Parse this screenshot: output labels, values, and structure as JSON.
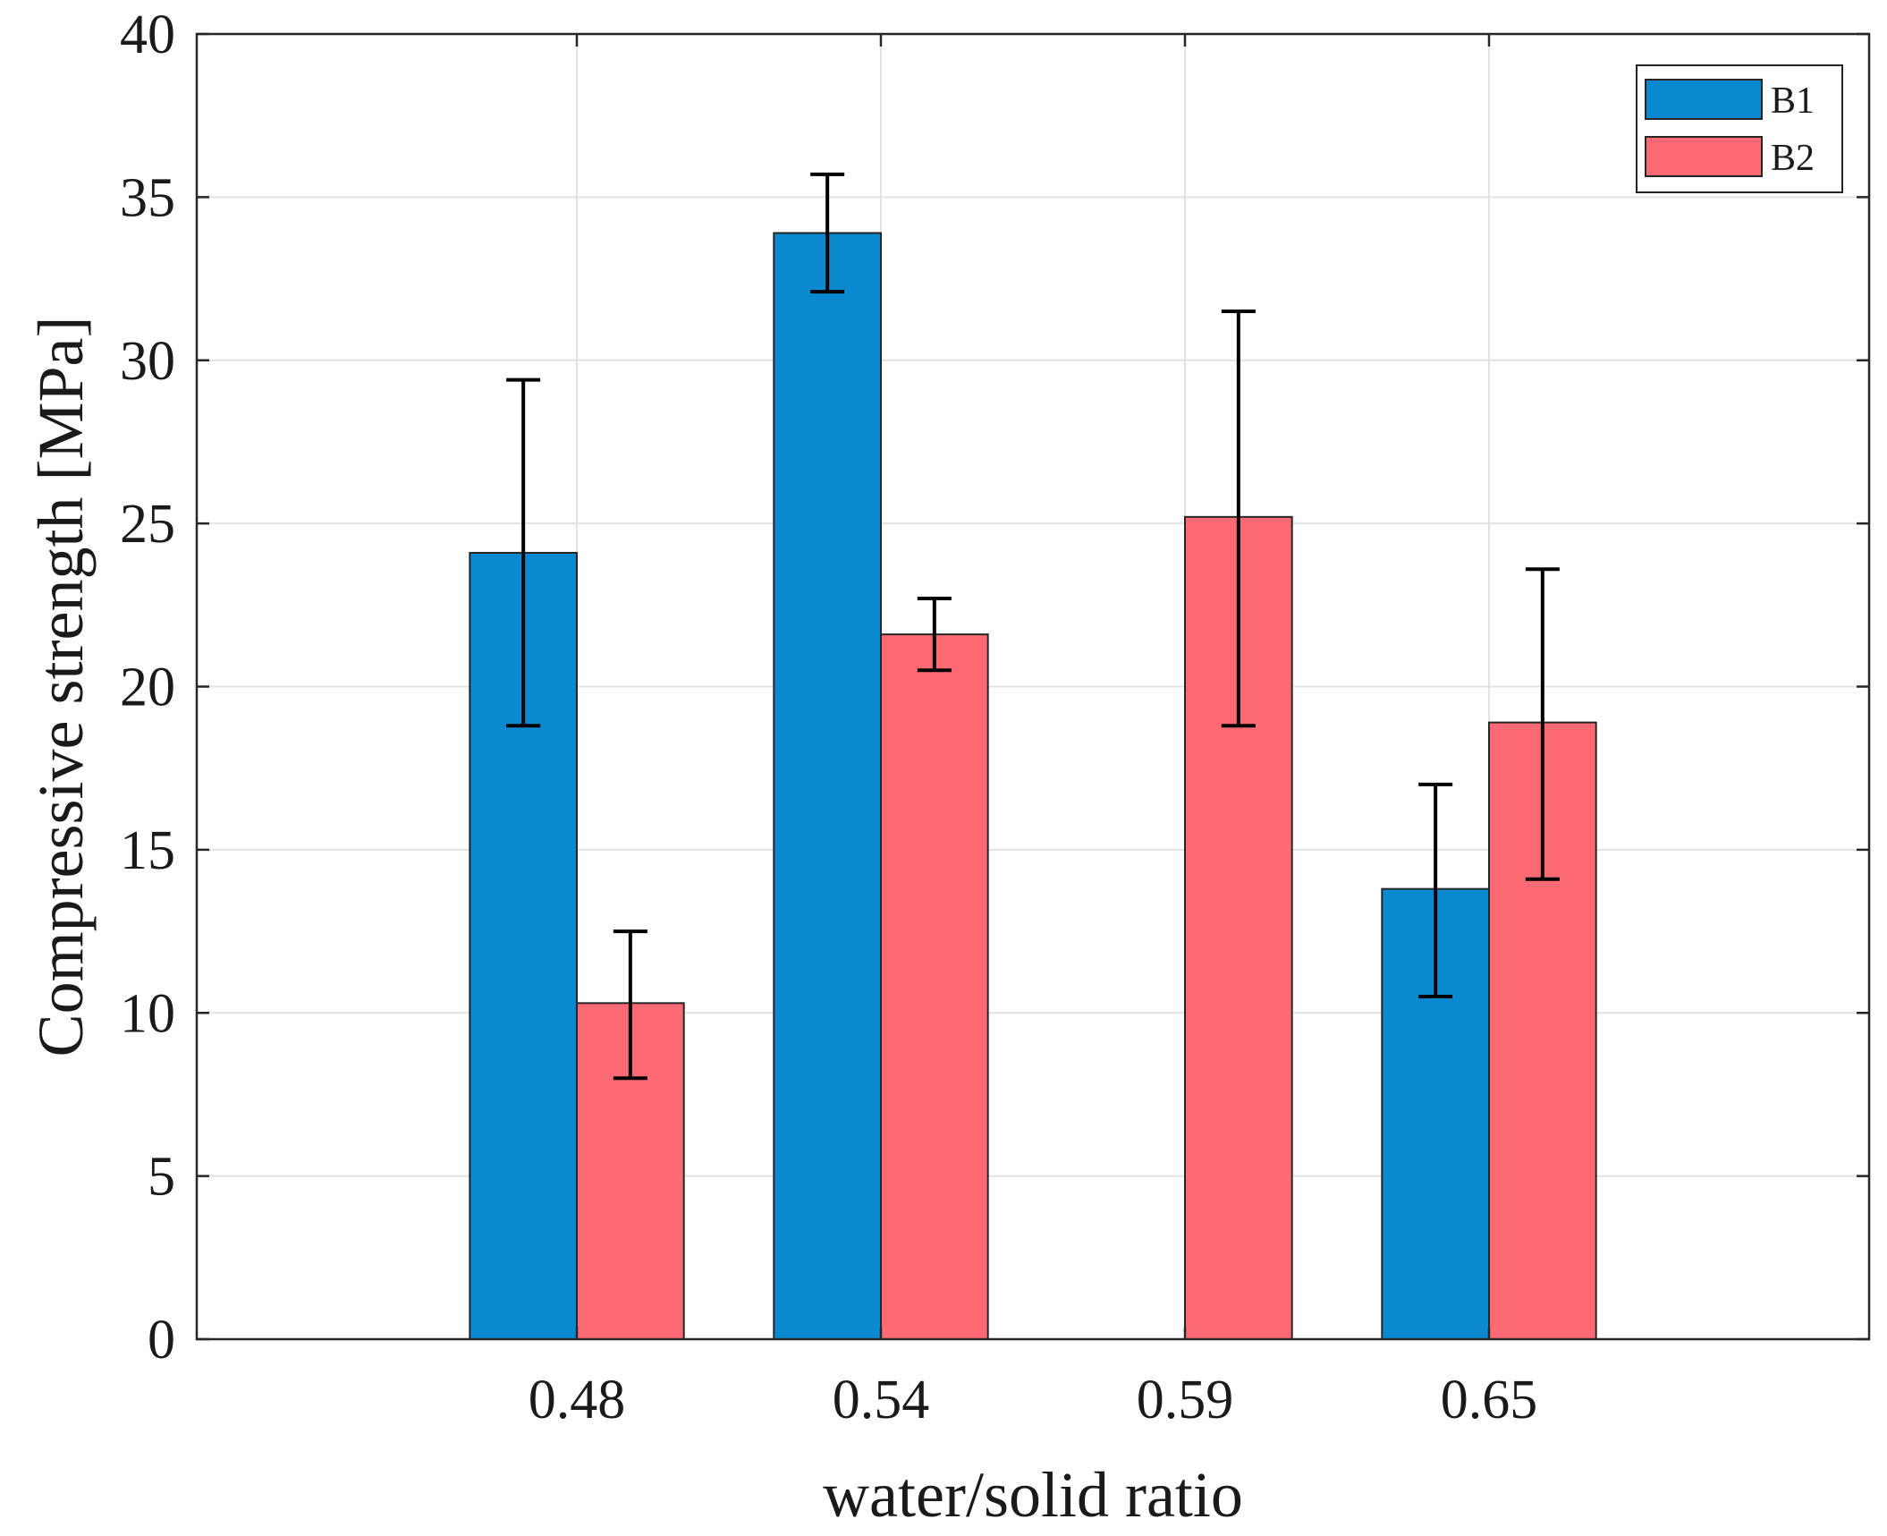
{
  "chart_data": {
    "type": "bar",
    "title": "",
    "xlabel": "water/solid ratio",
    "ylabel": "Compressive strength [MPa]",
    "ylim": [
      0,
      40
    ],
    "yticks": [
      0,
      5,
      10,
      15,
      20,
      25,
      30,
      35,
      40
    ],
    "categories": [
      "0.48",
      "0.54",
      "0.59",
      "0.65"
    ],
    "grid": true,
    "legend_position": "top-right",
    "series": [
      {
        "name": "B1",
        "color": "#0a88d0",
        "values": [
          24.1,
          33.9,
          null,
          13.8
        ],
        "err_low": [
          18.8,
          32.1,
          null,
          10.5
        ],
        "err_high": [
          29.4,
          35.7,
          null,
          17.0
        ]
      },
      {
        "name": "B2",
        "color": "#fd6a74",
        "values": [
          10.3,
          21.6,
          25.2,
          18.9
        ],
        "err_low": [
          8.0,
          20.5,
          18.8,
          14.1
        ],
        "err_high": [
          12.5,
          22.7,
          31.5,
          23.6
        ]
      }
    ]
  }
}
